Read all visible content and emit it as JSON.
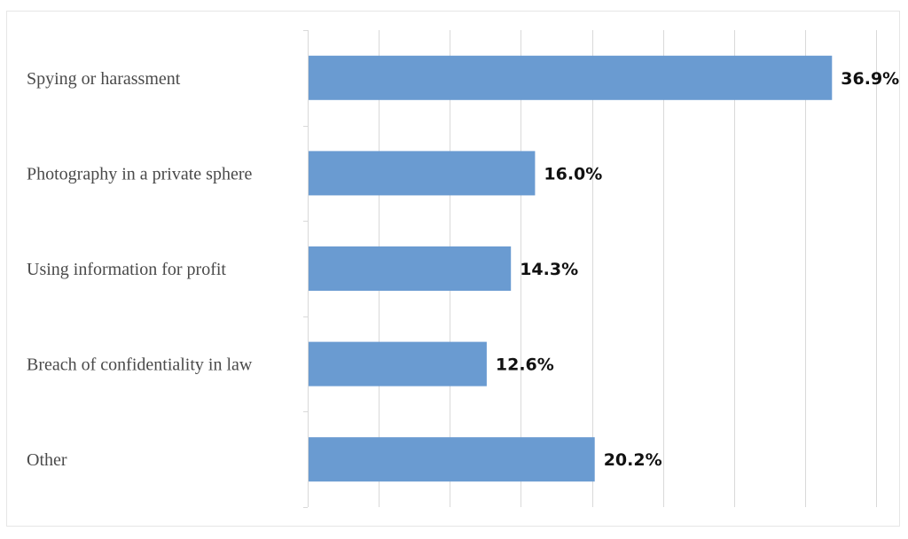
{
  "chart_data": {
    "type": "bar",
    "orientation": "horizontal",
    "categories": [
      "Spying or harassment",
      "Photography in a private sphere",
      "Using information for profit",
      "Breach of confidentiality in law",
      "Other"
    ],
    "values": [
      36.9,
      16.0,
      14.3,
      12.6,
      20.2
    ],
    "value_labels": [
      "36.9%",
      "16.0%",
      "14.3%",
      "12.6%",
      "20.2%"
    ],
    "xlim": [
      0,
      40
    ],
    "grid": true,
    "bar_color": "#6a9bd1",
    "grid_color": "#d9d9d9",
    "title": "",
    "xlabel": "",
    "ylabel": ""
  }
}
